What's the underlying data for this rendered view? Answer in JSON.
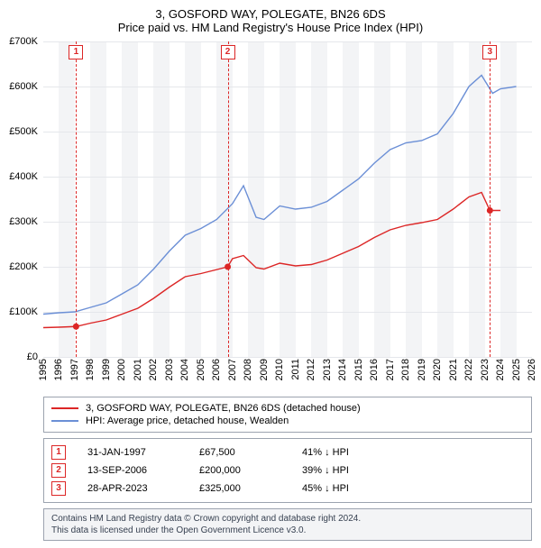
{
  "title": {
    "line1": "3, GOSFORD WAY, POLEGATE, BN26 6DS",
    "line2": "Price paid vs. HM Land Registry's House Price Index (HPI)"
  },
  "chart": {
    "type": "line",
    "background_color": "#ffffff",
    "band_color": "#f3f4f6",
    "grid_color": "#e5e7eb",
    "text_color": "#000000",
    "x_domain": [
      1995,
      2026
    ],
    "y_domain": [
      0,
      700000
    ],
    "y_ticks": [
      0,
      100000,
      200000,
      300000,
      400000,
      500000,
      600000,
      700000
    ],
    "y_tick_labels": [
      "£0",
      "£100K",
      "£200K",
      "£300K",
      "£400K",
      "£500K",
      "£600K",
      "£700K"
    ],
    "x_ticks": [
      1995,
      1996,
      1997,
      1998,
      1999,
      2000,
      2001,
      2002,
      2003,
      2004,
      2005,
      2006,
      2007,
      2008,
      2009,
      2010,
      2011,
      2012,
      2013,
      2014,
      2015,
      2016,
      2017,
      2018,
      2019,
      2020,
      2021,
      2022,
      2023,
      2024,
      2025,
      2026
    ],
    "series": [
      {
        "id": "hpi",
        "color": "#6b8fd6",
        "width": 1.4,
        "points": [
          [
            1995,
            95000
          ],
          [
            1996,
            98000
          ],
          [
            1997,
            100000
          ],
          [
            1998,
            110000
          ],
          [
            1999,
            120000
          ],
          [
            2000,
            140000
          ],
          [
            2001,
            160000
          ],
          [
            2002,
            195000
          ],
          [
            2003,
            235000
          ],
          [
            2004,
            270000
          ],
          [
            2005,
            285000
          ],
          [
            2006,
            305000
          ],
          [
            2007,
            340000
          ],
          [
            2007.7,
            380000
          ],
          [
            2008.5,
            310000
          ],
          [
            2009,
            305000
          ],
          [
            2010,
            335000
          ],
          [
            2011,
            328000
          ],
          [
            2012,
            332000
          ],
          [
            2013,
            345000
          ],
          [
            2014,
            370000
          ],
          [
            2015,
            395000
          ],
          [
            2016,
            430000
          ],
          [
            2017,
            460000
          ],
          [
            2018,
            475000
          ],
          [
            2019,
            480000
          ],
          [
            2020,
            495000
          ],
          [
            2021,
            540000
          ],
          [
            2022,
            600000
          ],
          [
            2022.8,
            625000
          ],
          [
            2023.5,
            585000
          ],
          [
            2024,
            595000
          ],
          [
            2025,
            600000
          ]
        ]
      },
      {
        "id": "price_paid",
        "color": "#dc2626",
        "width": 1.4,
        "points": [
          [
            1995,
            65000
          ],
          [
            1996,
            66000
          ],
          [
            1997.08,
            67500
          ],
          [
            1998,
            75000
          ],
          [
            1999,
            82000
          ],
          [
            2000,
            95000
          ],
          [
            2001,
            108000
          ],
          [
            2002,
            130000
          ],
          [
            2003,
            155000
          ],
          [
            2004,
            178000
          ],
          [
            2005,
            185000
          ],
          [
            2006.7,
            200000
          ],
          [
            2007,
            218000
          ],
          [
            2007.7,
            225000
          ],
          [
            2008.5,
            198000
          ],
          [
            2009,
            195000
          ],
          [
            2010,
            208000
          ],
          [
            2011,
            202000
          ],
          [
            2012,
            205000
          ],
          [
            2013,
            215000
          ],
          [
            2014,
            230000
          ],
          [
            2015,
            245000
          ],
          [
            2016,
            265000
          ],
          [
            2017,
            282000
          ],
          [
            2018,
            292000
          ],
          [
            2019,
            298000
          ],
          [
            2020,
            305000
          ],
          [
            2021,
            328000
          ],
          [
            2022,
            355000
          ],
          [
            2022.8,
            365000
          ],
          [
            2023.33,
            325000
          ],
          [
            2024,
            325000
          ]
        ]
      }
    ],
    "event_markers": [
      {
        "n": "1",
        "x": 1997.08,
        "y": 67500
      },
      {
        "n": "2",
        "x": 2006.7,
        "y": 200000
      },
      {
        "n": "3",
        "x": 2023.33,
        "y": 325000
      }
    ],
    "marker_color": "#dc2626",
    "marker_radius": 3.5
  },
  "legend": {
    "rows": [
      {
        "color": "#dc2626",
        "label": "3, GOSFORD WAY, POLEGATE, BN26 6DS (detached house)"
      },
      {
        "color": "#6b8fd6",
        "label": "HPI: Average price, detached house, Wealden"
      }
    ]
  },
  "events_detail": [
    {
      "n": "1",
      "date": "31-JAN-1997",
      "price": "£67,500",
      "delta": "41% ↓ HPI"
    },
    {
      "n": "2",
      "date": "13-SEP-2006",
      "price": "£200,000",
      "delta": "39% ↓ HPI"
    },
    {
      "n": "3",
      "date": "28-APR-2023",
      "price": "£325,000",
      "delta": "45% ↓ HPI"
    }
  ],
  "attribution": {
    "line1": "Contains HM Land Registry data © Crown copyright and database right 2024.",
    "line2": "This data is licensed under the Open Government Licence v3.0."
  }
}
